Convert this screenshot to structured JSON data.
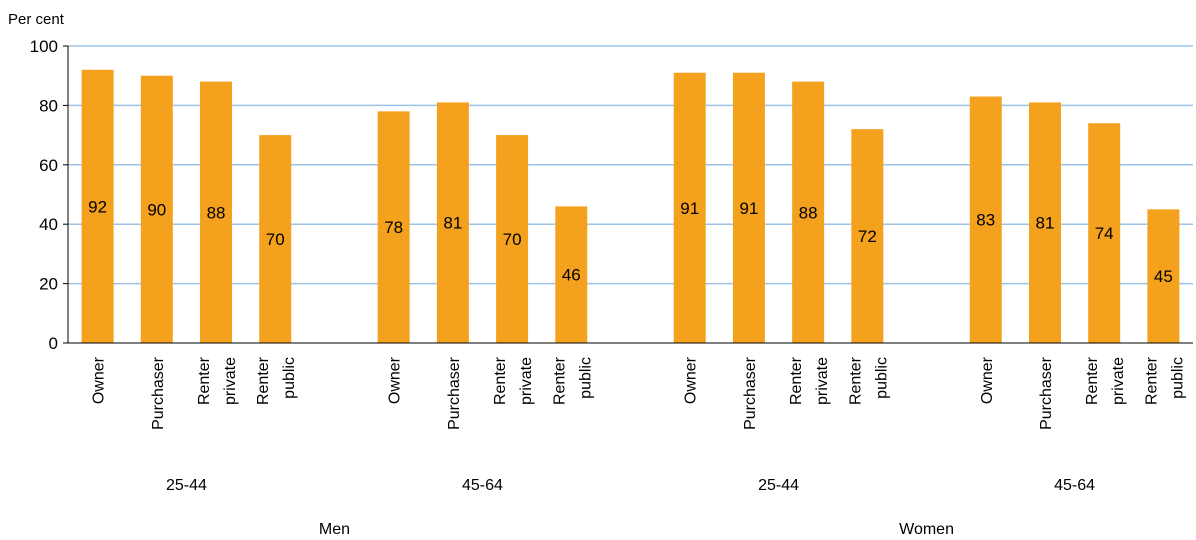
{
  "chart_data": {
    "type": "bar",
    "ylabel": "Per cent",
    "ylim": [
      0,
      100
    ],
    "yticks": [
      0,
      20,
      40,
      60,
      80,
      100
    ],
    "grid": true,
    "colors": {
      "bar": "#F4A11E",
      "grid": "#9DC3E6",
      "axis": "#000000"
    },
    "categories": [
      "Owner",
      "Purchaser",
      "Renter private",
      "Renter public",
      "Owner",
      "Purchaser",
      "Renter private",
      "Renter public",
      "Owner",
      "Purchaser",
      "Renter private",
      "Renter public",
      "Owner",
      "Purchaser",
      "Renter private",
      "Renter public"
    ],
    "category_lines": [
      [
        "Owner"
      ],
      [
        "Purchaser"
      ],
      [
        "Renter",
        "private"
      ],
      [
        "Renter",
        "public"
      ],
      [
        "Owner"
      ],
      [
        "Purchaser"
      ],
      [
        "Renter",
        "private"
      ],
      [
        "Renter",
        "public"
      ],
      [
        "Owner"
      ],
      [
        "Purchaser"
      ],
      [
        "Renter",
        "private"
      ],
      [
        "Renter",
        "public"
      ],
      [
        "Owner"
      ],
      [
        "Purchaser"
      ],
      [
        "Renter",
        "private"
      ],
      [
        "Renter",
        "public"
      ]
    ],
    "values": [
      92,
      90,
      88,
      70,
      78,
      81,
      70,
      46,
      91,
      91,
      88,
      72,
      83,
      81,
      74,
      45
    ],
    "age_groups": [
      "25-44",
      "45-64",
      "25-44",
      "45-64"
    ],
    "sex_groups": [
      "Men",
      "Women"
    ]
  }
}
